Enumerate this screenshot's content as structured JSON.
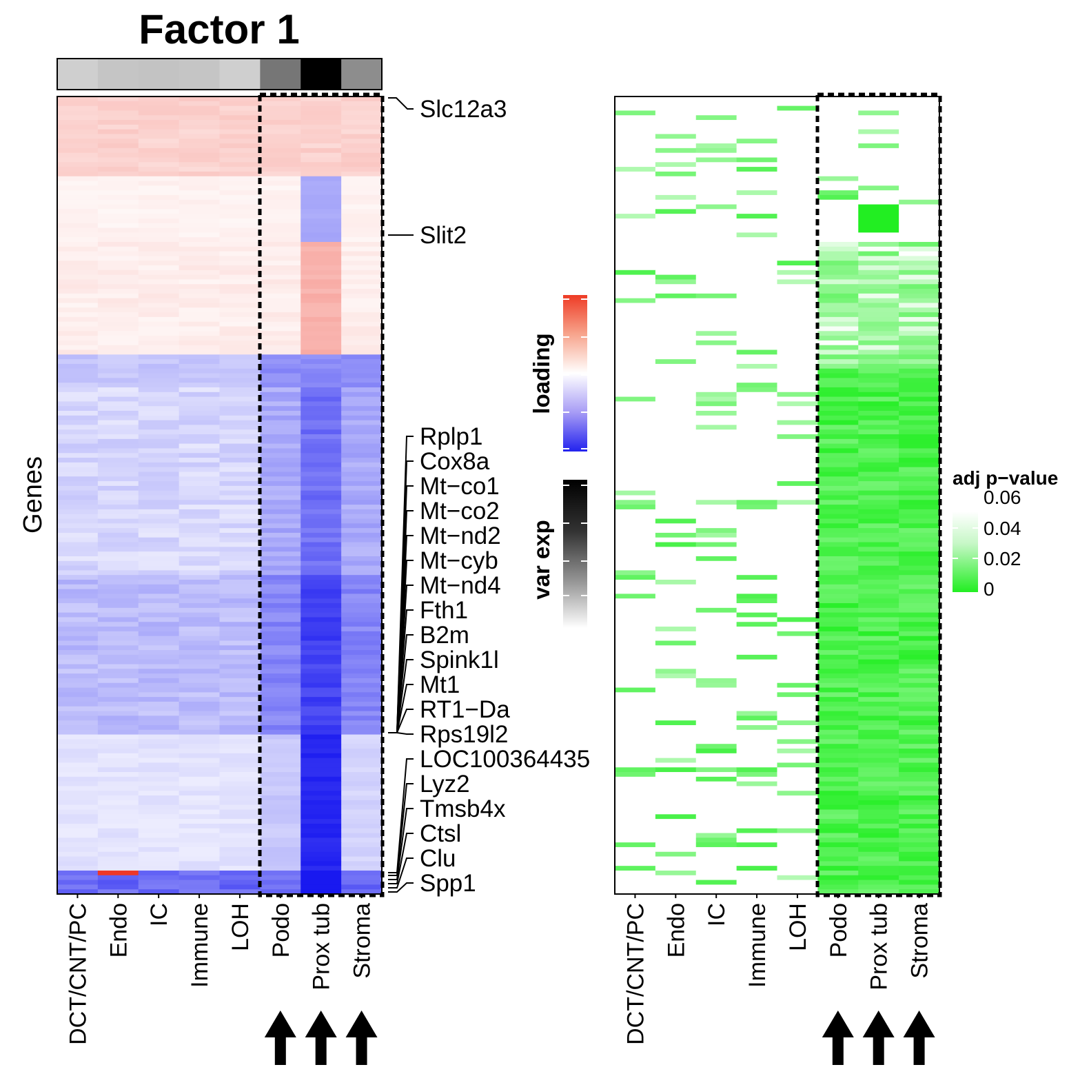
{
  "chart_data": [
    {
      "type": "heatmap",
      "panel": "loading",
      "title": "Factor 1",
      "ylabel": "Genes",
      "columns": [
        "DCT/CNT/PC",
        "Endo",
        "IC",
        "Immune",
        "LOH",
        "Podo",
        "Prox tub",
        "Stroma"
      ],
      "highlighted_columns": [
        "Podo",
        "Prox tub",
        "Stroma"
      ],
      "var_exp_bar": [
        0.12,
        0.16,
        0.17,
        0.16,
        0.12,
        0.5,
        1.0,
        0.4
      ],
      "labeled_genes": [
        "Slc12a3",
        "Slit2",
        "Rplp1",
        "Cox8a",
        "Mt−co1",
        "Mt−co2",
        "Mt−nd2",
        "Mt−cyb",
        "Mt−nd4",
        "Fth1",
        "B2m",
        "Spink1l",
        "Mt1",
        "RT1−Da",
        "Rps19l2",
        "LOC100364435",
        "Lyz2",
        "Tmsb4x",
        "Ctsl",
        "Clu",
        "Spp1"
      ],
      "color_scale": "blue (negative) - white (0) - red (positive)"
    },
    {
      "type": "heatmap",
      "panel": "adj p-value",
      "columns": [
        "DCT/CNT/PC",
        "Endo",
        "IC",
        "Immune",
        "LOH",
        "Podo",
        "Prox tub",
        "Stroma"
      ],
      "highlighted_columns": [
        "Podo",
        "Prox tub",
        "Stroma"
      ],
      "legend_title": "adj p−value",
      "legend_ticks": [
        "0.06",
        "0.04",
        "0.02",
        "0"
      ],
      "legend_range": [
        0,
        0.06
      ],
      "color_scale": "green (0) - white (0.06)"
    }
  ],
  "legends": {
    "loading_label": "loading",
    "varexp_label": "var exp"
  },
  "colors": {
    "negative": "#1010f0",
    "positive": "#ee2222",
    "significant": "#22ee22",
    "neutral": "#ffffff"
  }
}
